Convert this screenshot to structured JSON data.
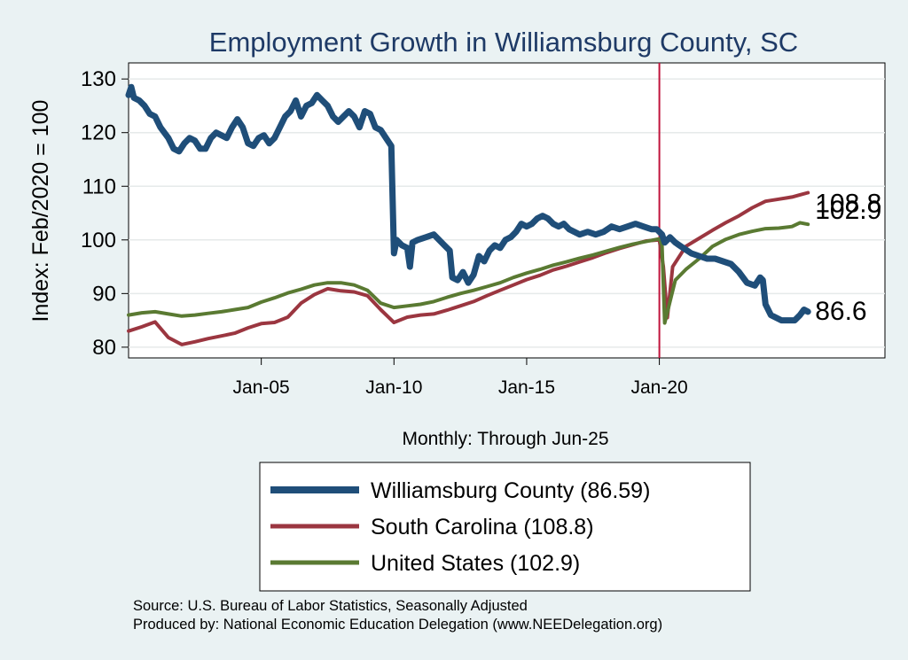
{
  "chart_data": {
    "type": "line",
    "title": "Employment Growth in Williamsburg  County, SC",
    "xlabel": "Monthly: Through Jun-25",
    "ylabel": "Index: Feb/2020 = 100",
    "ylim": [
      78,
      133
    ],
    "xlim": [
      2000.0,
      2028.5
    ],
    "y_ticks": [
      80,
      90,
      100,
      110,
      120,
      130
    ],
    "x_ticks": [
      {
        "label": "Jan-05",
        "value": 2005.0
      },
      {
        "label": "Jan-10",
        "value": 2010.0
      },
      {
        "label": "Jan-15",
        "value": 2015.0
      },
      {
        "label": "Jan-20",
        "value": 2020.0
      }
    ],
    "reference_line": {
      "x": 2020.0,
      "color": "#c0143c"
    },
    "gridlines": true,
    "legend_position": "bottom",
    "series": [
      {
        "name": "Williamsburg  County",
        "legend_label": "Williamsburg  County (86.59)",
        "color": "#1f4e79",
        "end_label": "86.6",
        "points": [
          [
            2000.0,
            127
          ],
          [
            2000.1,
            128.5
          ],
          [
            2000.2,
            126.5
          ],
          [
            2000.4,
            126
          ],
          [
            2000.6,
            125
          ],
          [
            2000.8,
            123.5
          ],
          [
            2001.0,
            123
          ],
          [
            2001.2,
            121
          ],
          [
            2001.5,
            119
          ],
          [
            2001.7,
            117
          ],
          [
            2001.9,
            116.5
          ],
          [
            2002.1,
            118
          ],
          [
            2002.3,
            119
          ],
          [
            2002.5,
            118.5
          ],
          [
            2002.7,
            117
          ],
          [
            2002.9,
            117
          ],
          [
            2003.1,
            119
          ],
          [
            2003.3,
            120
          ],
          [
            2003.5,
            119.5
          ],
          [
            2003.7,
            119
          ],
          [
            2003.9,
            121
          ],
          [
            2004.1,
            122.5
          ],
          [
            2004.3,
            121
          ],
          [
            2004.5,
            118
          ],
          [
            2004.7,
            117.5
          ],
          [
            2004.9,
            119
          ],
          [
            2005.1,
            119.5
          ],
          [
            2005.3,
            118
          ],
          [
            2005.5,
            119
          ],
          [
            2005.7,
            121
          ],
          [
            2005.9,
            123
          ],
          [
            2006.1,
            124
          ],
          [
            2006.3,
            126
          ],
          [
            2006.5,
            123
          ],
          [
            2006.7,
            125
          ],
          [
            2006.9,
            125.5
          ],
          [
            2007.1,
            127
          ],
          [
            2007.3,
            126
          ],
          [
            2007.5,
            125
          ],
          [
            2007.7,
            123
          ],
          [
            2007.9,
            122
          ],
          [
            2008.1,
            123
          ],
          [
            2008.3,
            124
          ],
          [
            2008.5,
            123
          ],
          [
            2008.7,
            121
          ],
          [
            2008.9,
            124
          ],
          [
            2009.1,
            123.5
          ],
          [
            2009.3,
            121
          ],
          [
            2009.5,
            120.5
          ],
          [
            2009.7,
            119
          ],
          [
            2009.9,
            117.5
          ],
          [
            2010.0,
            97.5
          ],
          [
            2010.1,
            100
          ],
          [
            2010.3,
            99
          ],
          [
            2010.5,
            98.5
          ],
          [
            2010.6,
            95
          ],
          [
            2010.7,
            99.5
          ],
          [
            2010.9,
            100
          ],
          [
            2011.2,
            100.5
          ],
          [
            2011.5,
            101
          ],
          [
            2011.7,
            100
          ],
          [
            2011.9,
            99
          ],
          [
            2012.1,
            98
          ],
          [
            2012.2,
            93
          ],
          [
            2012.4,
            92.5
          ],
          [
            2012.6,
            94
          ],
          [
            2012.8,
            92
          ],
          [
            2013.0,
            93.5
          ],
          [
            2013.2,
            97
          ],
          [
            2013.4,
            96
          ],
          [
            2013.6,
            98
          ],
          [
            2013.8,
            99
          ],
          [
            2014.0,
            98.5
          ],
          [
            2014.2,
            100
          ],
          [
            2014.4,
            100.5
          ],
          [
            2014.6,
            101.5
          ],
          [
            2014.8,
            103
          ],
          [
            2015.0,
            102.5
          ],
          [
            2015.2,
            103
          ],
          [
            2015.4,
            104
          ],
          [
            2015.6,
            104.5
          ],
          [
            2015.8,
            104
          ],
          [
            2016.0,
            103
          ],
          [
            2016.2,
            102.5
          ],
          [
            2016.4,
            103
          ],
          [
            2016.6,
            102
          ],
          [
            2016.8,
            101.5
          ],
          [
            2017.0,
            101
          ],
          [
            2017.3,
            101.5
          ],
          [
            2017.6,
            101
          ],
          [
            2017.9,
            101.5
          ],
          [
            2018.2,
            102.5
          ],
          [
            2018.5,
            102
          ],
          [
            2018.8,
            102.5
          ],
          [
            2019.1,
            103
          ],
          [
            2019.4,
            102.5
          ],
          [
            2019.7,
            102
          ],
          [
            2019.9,
            102
          ],
          [
            2020.0,
            101.5
          ],
          [
            2020.1,
            101
          ],
          [
            2020.2,
            99.5
          ],
          [
            2020.4,
            100.5
          ],
          [
            2020.6,
            99.5
          ],
          [
            2020.9,
            98.5
          ],
          [
            2021.2,
            97.5
          ],
          [
            2021.5,
            97
          ],
          [
            2021.8,
            96.5
          ],
          [
            2022.1,
            96.5
          ],
          [
            2022.4,
            96
          ],
          [
            2022.7,
            95.5
          ],
          [
            2023.0,
            94
          ],
          [
            2023.3,
            92
          ],
          [
            2023.6,
            91.5
          ],
          [
            2023.8,
            93
          ],
          [
            2023.9,
            92.5
          ],
          [
            2024.0,
            88
          ],
          [
            2024.2,
            86
          ],
          [
            2024.4,
            85.5
          ],
          [
            2024.6,
            85
          ],
          [
            2024.9,
            85
          ],
          [
            2025.1,
            85
          ],
          [
            2025.3,
            86
          ],
          [
            2025.45,
            87
          ],
          [
            2025.6,
            86.6
          ]
        ]
      },
      {
        "name": "South Carolina",
        "legend_label": "South Carolina (108.8)",
        "color": "#9b3640",
        "end_label": "108.8",
        "points": [
          [
            2000.0,
            83
          ],
          [
            2000.5,
            83.8
          ],
          [
            2001.0,
            84.7
          ],
          [
            2001.5,
            81.8
          ],
          [
            2002.0,
            80.5
          ],
          [
            2002.5,
            81
          ],
          [
            2003.0,
            81.6
          ],
          [
            2003.5,
            82.1
          ],
          [
            2004.0,
            82.6
          ],
          [
            2004.5,
            83.6
          ],
          [
            2005.0,
            84.4
          ],
          [
            2005.5,
            84.6
          ],
          [
            2006.0,
            85.6
          ],
          [
            2006.5,
            88.2
          ],
          [
            2007.0,
            89.8
          ],
          [
            2007.5,
            90.9
          ],
          [
            2008.0,
            90.5
          ],
          [
            2008.5,
            90.3
          ],
          [
            2009.0,
            89.6
          ],
          [
            2009.5,
            87
          ],
          [
            2010.0,
            84.6
          ],
          [
            2010.5,
            85.6
          ],
          [
            2011.0,
            86
          ],
          [
            2011.5,
            86.2
          ],
          [
            2012.0,
            86.9
          ],
          [
            2012.5,
            87.7
          ],
          [
            2013.0,
            88.5
          ],
          [
            2013.5,
            89.6
          ],
          [
            2014.0,
            90.6
          ],
          [
            2014.5,
            91.6
          ],
          [
            2015.0,
            92.6
          ],
          [
            2015.5,
            93.4
          ],
          [
            2016.0,
            94.4
          ],
          [
            2016.5,
            95.1
          ],
          [
            2017.0,
            95.9
          ],
          [
            2017.5,
            96.7
          ],
          [
            2018.0,
            97.6
          ],
          [
            2018.5,
            98.4
          ],
          [
            2019.0,
            99.1
          ],
          [
            2019.5,
            99.8
          ],
          [
            2020.0,
            100
          ],
          [
            2020.15,
            95
          ],
          [
            2020.3,
            85.5
          ],
          [
            2020.5,
            95
          ],
          [
            2021.0,
            98.8
          ],
          [
            2021.5,
            100.3
          ],
          [
            2022.0,
            101.8
          ],
          [
            2022.5,
            103.2
          ],
          [
            2023.0,
            104.5
          ],
          [
            2023.5,
            106
          ],
          [
            2024.0,
            107.2
          ],
          [
            2024.5,
            107.6
          ],
          [
            2025.0,
            108
          ],
          [
            2025.3,
            108.4
          ],
          [
            2025.6,
            108.8
          ]
        ]
      },
      {
        "name": "United States",
        "legend_label": "United States (102.9)",
        "color": "#5a7a32",
        "end_label": "102.9",
        "points": [
          [
            2000.0,
            86
          ],
          [
            2000.5,
            86.4
          ],
          [
            2001.0,
            86.6
          ],
          [
            2001.5,
            86.2
          ],
          [
            2002.0,
            85.8
          ],
          [
            2002.5,
            86
          ],
          [
            2003.0,
            86.3
          ],
          [
            2003.5,
            86.6
          ],
          [
            2004.0,
            87
          ],
          [
            2004.5,
            87.4
          ],
          [
            2005.0,
            88.4
          ],
          [
            2005.5,
            89.2
          ],
          [
            2006.0,
            90.1
          ],
          [
            2006.5,
            90.8
          ],
          [
            2007.0,
            91.6
          ],
          [
            2007.5,
            92
          ],
          [
            2008.0,
            92
          ],
          [
            2008.5,
            91.6
          ],
          [
            2009.0,
            90.6
          ],
          [
            2009.5,
            88.2
          ],
          [
            2010.0,
            87.4
          ],
          [
            2010.5,
            87.7
          ],
          [
            2011.0,
            88
          ],
          [
            2011.5,
            88.5
          ],
          [
            2012.0,
            89.3
          ],
          [
            2012.5,
            90
          ],
          [
            2013.0,
            90.6
          ],
          [
            2013.5,
            91.3
          ],
          [
            2014.0,
            92
          ],
          [
            2014.5,
            93
          ],
          [
            2015.0,
            93.8
          ],
          [
            2015.5,
            94.5
          ],
          [
            2016.0,
            95.3
          ],
          [
            2016.5,
            95.9
          ],
          [
            2017.0,
            96.6
          ],
          [
            2017.5,
            97.2
          ],
          [
            2018.0,
            97.9
          ],
          [
            2018.5,
            98.6
          ],
          [
            2019.0,
            99.2
          ],
          [
            2019.5,
            99.7
          ],
          [
            2020.0,
            100.2
          ],
          [
            2020.1,
            99
          ],
          [
            2020.2,
            84.5
          ],
          [
            2020.4,
            88.5
          ],
          [
            2020.6,
            92.5
          ],
          [
            2021.0,
            94.5
          ],
          [
            2021.5,
            96.5
          ],
          [
            2022.0,
            98.8
          ],
          [
            2022.5,
            100.1
          ],
          [
            2023.0,
            101
          ],
          [
            2023.5,
            101.6
          ],
          [
            2024.0,
            102.1
          ],
          [
            2024.5,
            102.2
          ],
          [
            2025.0,
            102.5
          ],
          [
            2025.3,
            103.2
          ],
          [
            2025.6,
            102.9
          ]
        ]
      }
    ]
  },
  "source": "Source: U.S. Bureau of Labor Statistics, Seasonally Adjusted",
  "produced_by": "Produced by: National Economic Education Delegation (www.NEEDelegation.org)"
}
